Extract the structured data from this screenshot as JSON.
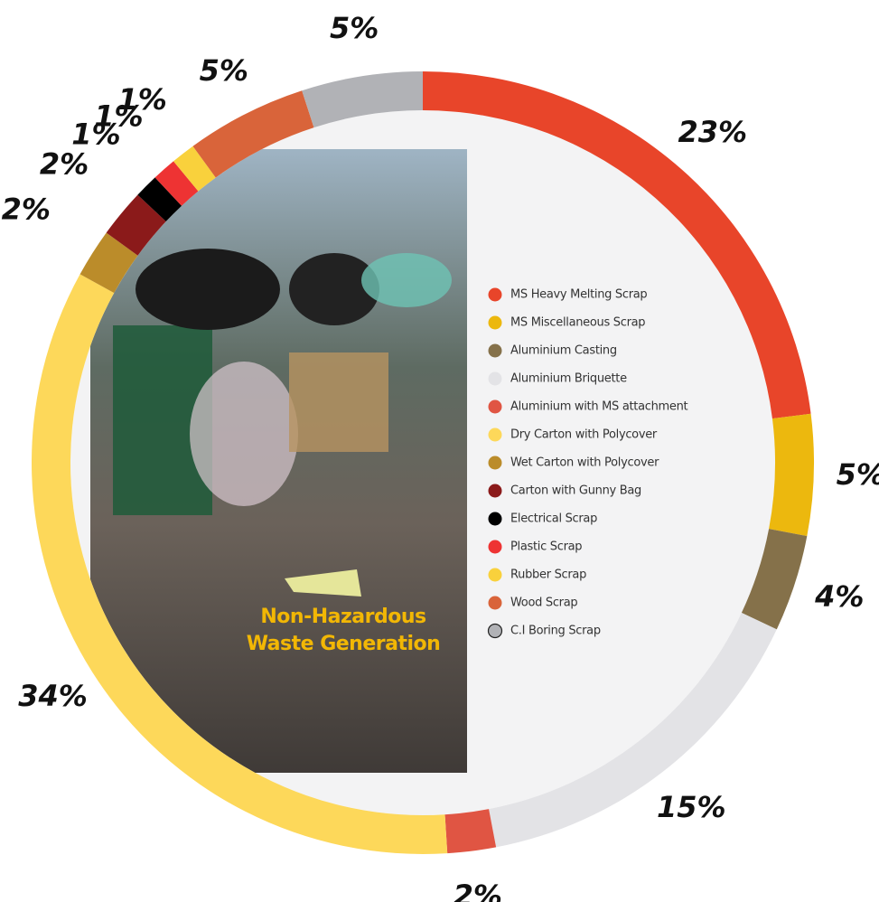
{
  "chart_data": {
    "type": "donut",
    "title": "Non-Hazardous Waste Generation",
    "categories": [
      "MS Heavy Melting Scrap",
      "MS Miscellaneous Scrap",
      "Aluminium Casting",
      "Aluminium Briquette",
      "Aluminium with MS attachment",
      "Dry Carton with Polycover",
      "Wet Carton with Polycover",
      "Carton with Gunny Bag",
      "Electrical Scrap",
      "Plastic Scrap",
      "Rubber Scrap",
      "Wood Scrap",
      "C.I Boring Scrap"
    ],
    "values": [
      23,
      5,
      4,
      15,
      2,
      34,
      2,
      2,
      1,
      1,
      1,
      5,
      5
    ],
    "value_labels": [
      "23%",
      "5%",
      "4%",
      "15%",
      "2%",
      "34%",
      "2%",
      "2%",
      "1%",
      "1%",
      "1%",
      "5%",
      "5%"
    ],
    "colors": [
      "#e8452a",
      "#ecb80e",
      "#85714a",
      "#e3e3e6",
      "#e05543",
      "#fdd85a",
      "#bb8c2a",
      "#8b1a1a",
      "#000000",
      "#ee3333",
      "#f9d13c",
      "#d9643a",
      "#b1b2b6"
    ]
  }
}
